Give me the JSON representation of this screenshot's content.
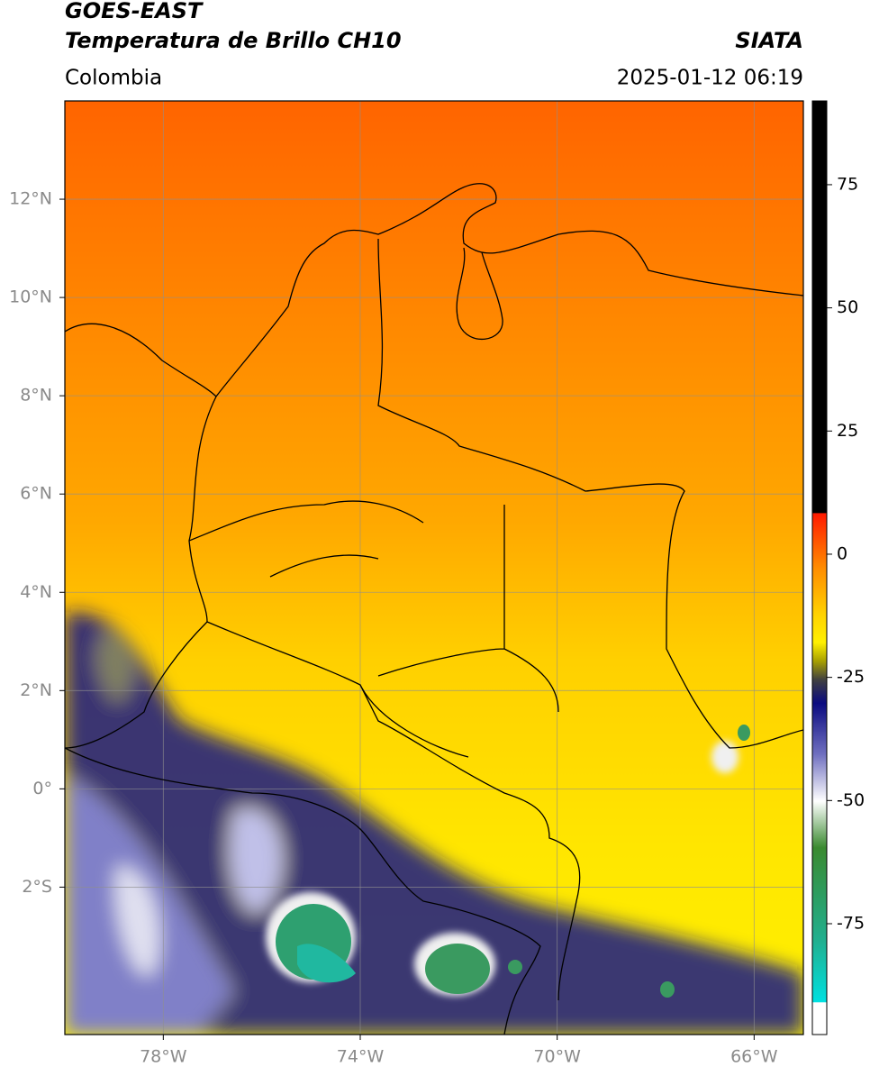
{
  "header": {
    "title": "GOES-EAST",
    "subtitle": "Temperatura de Brillo CH10",
    "brand": "SIATA",
    "region": "Colombia",
    "timestamp": "2025-01-12 06:19"
  },
  "map": {
    "xlim": [
      -80,
      -65
    ],
    "ylim": [
      -5,
      14
    ],
    "xticks": [
      {
        "value": -78,
        "label": "78°W"
      },
      {
        "value": -74,
        "label": "74°W"
      },
      {
        "value": -70,
        "label": "70°W"
      },
      {
        "value": -66,
        "label": "66°W"
      }
    ],
    "yticks": [
      {
        "value": 12,
        "label": "12°N"
      },
      {
        "value": 10,
        "label": "10°N"
      },
      {
        "value": 8,
        "label": "8°N"
      },
      {
        "value": 6,
        "label": "6°N"
      },
      {
        "value": 4,
        "label": "4°N"
      },
      {
        "value": 2,
        "label": "2°N"
      },
      {
        "value": 0,
        "label": "0°"
      },
      {
        "value": -2,
        "label": "2°S"
      }
    ],
    "grid": true
  },
  "colorbar": {
    "lim": [
      -97.5,
      92
    ],
    "ticks": [
      75,
      50,
      25,
      0,
      -25,
      -50,
      -75
    ]
  }
}
